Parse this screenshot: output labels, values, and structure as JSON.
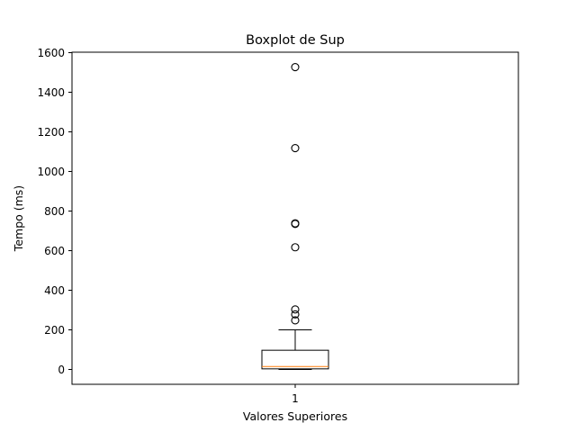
{
  "chart_data": {
    "type": "box",
    "title": "Boxplot de Sup",
    "xlabel": "Valores Superiores",
    "ylabel": "Tempo (ms)",
    "categories": [
      "1"
    ],
    "ylim": [
      -75,
      1600
    ],
    "yticks": [
      "0",
      "200",
      "400",
      "600",
      "800",
      "1000",
      "1200",
      "1400",
      "1600"
    ],
    "grid": false,
    "box": {
      "q1": 3,
      "median": 15,
      "q3": 97,
      "whisker_low": 0,
      "whisker_high": 200,
      "outliers": [
        248,
        278,
        303,
        617,
        735,
        738,
        1118,
        1527
      ]
    },
    "colors": {
      "box": "#000000",
      "median": "#ff7f0e",
      "outlier": "#000000"
    }
  }
}
